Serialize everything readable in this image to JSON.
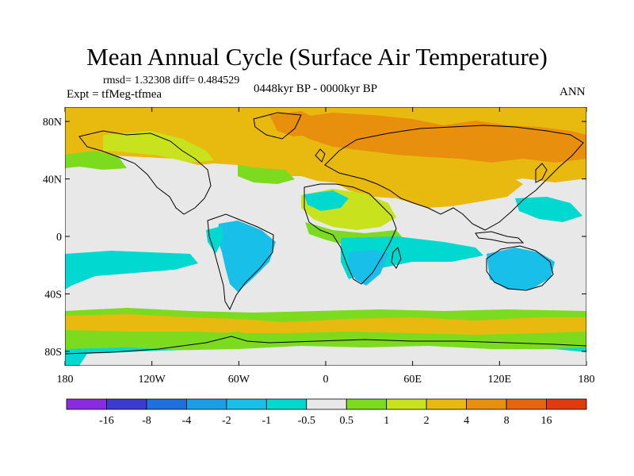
{
  "title": "Mean Annual Cycle (Surface Air Temperature)",
  "stats": {
    "rmsd_label": "rmsd=",
    "rmsd": "1.32308",
    "diff_label": "diff=",
    "diff": "0.484529"
  },
  "experiment": "Expt = tfMeg-tfmea",
  "period": "0448kyr BP - 0000kyr BP",
  "season": "ANN",
  "axes": {
    "lat_labels": [
      "80N",
      "40N",
      "0",
      "40S",
      "80S"
    ],
    "lat_values": [
      80,
      40,
      0,
      -40,
      -80
    ],
    "lon_labels": [
      "180",
      "120W",
      "60W",
      "0",
      "60E",
      "120E",
      "180"
    ],
    "lon_values": [
      -180,
      -120,
      -60,
      0,
      60,
      120,
      180
    ]
  },
  "colorbar": {
    "labels": [
      "-16",
      "-8",
      "-4",
      "-2",
      "-1",
      "-0.5",
      "0.5",
      "1",
      "2",
      "4",
      "8",
      "16"
    ],
    "colors": [
      "#8a2be2",
      "#3b3bd1",
      "#1e6fe0",
      "#1a9ee6",
      "#18bfe8",
      "#00d8d0",
      "#e8e8e8",
      "#7ddb1f",
      "#c9e21e",
      "#e8b90e",
      "#e88f0e",
      "#e8640e",
      "#e03a0e"
    ]
  },
  "map_colors": {
    "neutral": "#e8e8e8",
    "cool_1": "#00d8d0",
    "cool_2": "#18bfe8",
    "warm_1": "#7ddb1f",
    "warm_2": "#c9e21e",
    "warm_3": "#e8b90e",
    "warm_4": "#e88f0e",
    "warm_5": "#e8640e",
    "coast": "#000000"
  }
}
